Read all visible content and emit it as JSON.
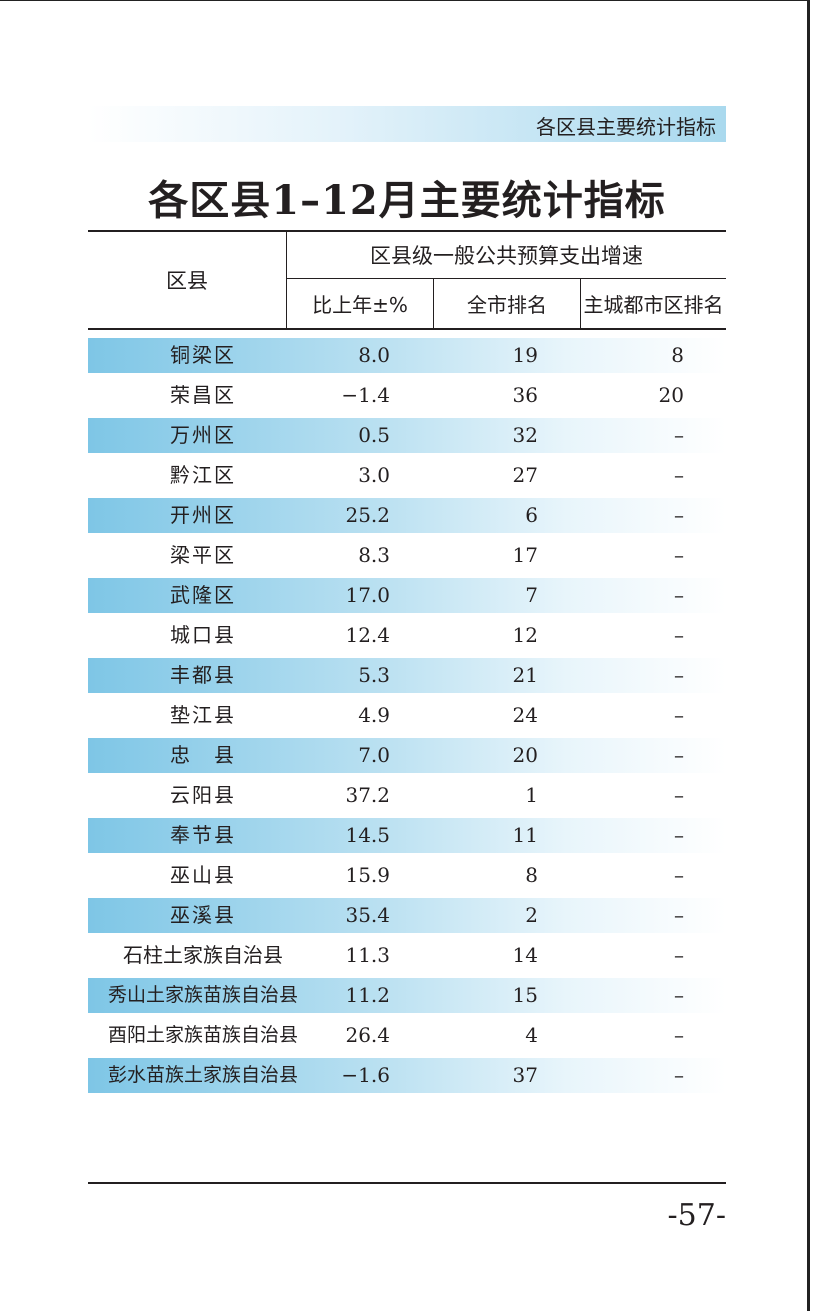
{
  "running_head": "各区县主要统计指标",
  "title": "各区县1–12月主要统计指标",
  "table": {
    "col_district": "区县",
    "col_group": "区县级一般公共预算支出增速",
    "col_yoy": "比上年±%",
    "col_city_rank": "全市排名",
    "col_urban_rank": "主城都市区排名",
    "rows": [
      {
        "name": "铜梁区",
        "yoy": "8.0",
        "city_rank": "19",
        "urban_rank": "8"
      },
      {
        "name": "荣昌区",
        "yoy": "−1.4",
        "city_rank": "36",
        "urban_rank": "20"
      },
      {
        "name": "万州区",
        "yoy": "0.5",
        "city_rank": "32",
        "urban_rank": "–"
      },
      {
        "name": "黔江区",
        "yoy": "3.0",
        "city_rank": "27",
        "urban_rank": "–"
      },
      {
        "name": "开州区",
        "yoy": "25.2",
        "city_rank": "6",
        "urban_rank": "–"
      },
      {
        "name": "梁平区",
        "yoy": "8.3",
        "city_rank": "17",
        "urban_rank": "–"
      },
      {
        "name": "武隆区",
        "yoy": "17.0",
        "city_rank": "7",
        "urban_rank": "–"
      },
      {
        "name": "城口县",
        "yoy": "12.4",
        "city_rank": "12",
        "urban_rank": "–"
      },
      {
        "name": "丰都县",
        "yoy": "5.3",
        "city_rank": "21",
        "urban_rank": "–"
      },
      {
        "name": "垫江县",
        "yoy": "4.9",
        "city_rank": "24",
        "urban_rank": "–"
      },
      {
        "name": "忠　县",
        "yoy": "7.0",
        "city_rank": "20",
        "urban_rank": "–"
      },
      {
        "name": "云阳县",
        "yoy": "37.2",
        "city_rank": "1",
        "urban_rank": "–"
      },
      {
        "name": "奉节县",
        "yoy": "14.5",
        "city_rank": "11",
        "urban_rank": "–"
      },
      {
        "name": "巫山县",
        "yoy": "15.9",
        "city_rank": "8",
        "urban_rank": "–"
      },
      {
        "name": "巫溪县",
        "yoy": "35.4",
        "city_rank": "2",
        "urban_rank": "–"
      },
      {
        "name": "石柱土家族自治县",
        "yoy": "11.3",
        "city_rank": "14",
        "urban_rank": "–"
      },
      {
        "name": "秀山土家族苗族自治县",
        "yoy": "11.2",
        "city_rank": "15",
        "urban_rank": "–"
      },
      {
        "name": "酉阳土家族苗族自治县",
        "yoy": "26.4",
        "city_rank": "4",
        "urban_rank": "–"
      },
      {
        "name": "彭水苗族土家族自治县",
        "yoy": "−1.6",
        "city_rank": "37",
        "urban_rank": "–"
      }
    ]
  },
  "page_number": "-57-"
}
